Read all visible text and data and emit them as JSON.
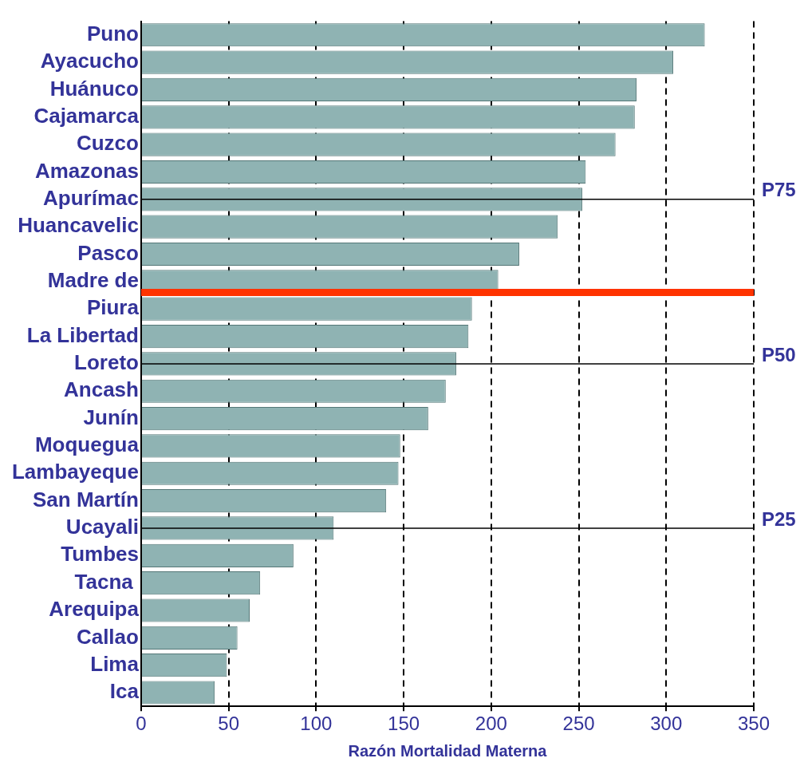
{
  "chart_data": {
    "type": "bar",
    "orientation": "horizontal",
    "xlabel": "Razón Mortalidad Materna",
    "categories": [
      "Puno",
      "Ayacucho",
      "Huánuco",
      "Cajamarca",
      "Cuzco",
      "Amazonas",
      "Apurímac",
      "Huancavelic",
      "Pasco",
      "Madre de",
      "Piura",
      "La Libertad",
      "Loreto",
      "Ancash",
      "Junín",
      "Moquegua",
      "Lambayeque",
      "San Martín",
      "Ucayali",
      "Tumbes",
      "Tacna ",
      "Arequipa",
      "Callao",
      "Lima",
      "Ica"
    ],
    "values": [
      322,
      304,
      283,
      282,
      271,
      254,
      252,
      238,
      216,
      204,
      189,
      187,
      180,
      174,
      164,
      148,
      147,
      140,
      110,
      87,
      68,
      62,
      55,
      49,
      42
    ],
    "color": "#8fb3b3",
    "xlim": [
      0,
      350
    ],
    "xticks": [
      0,
      50,
      100,
      150,
      200,
      250,
      300,
      350
    ],
    "grid": "x",
    "legend": false,
    "ref_lines": [
      {
        "axis": "y",
        "value": "Apurímac",
        "label": "P75",
        "color": "#000000"
      },
      {
        "axis": "y",
        "value": "Madre de",
        "color": "#ff3300"
      },
      {
        "axis": "y",
        "value": "Loreto",
        "label": "P50",
        "color": "#000000"
      },
      {
        "axis": "y",
        "value": "Ucayali",
        "label": "P25",
        "color": "#000000"
      }
    ]
  }
}
